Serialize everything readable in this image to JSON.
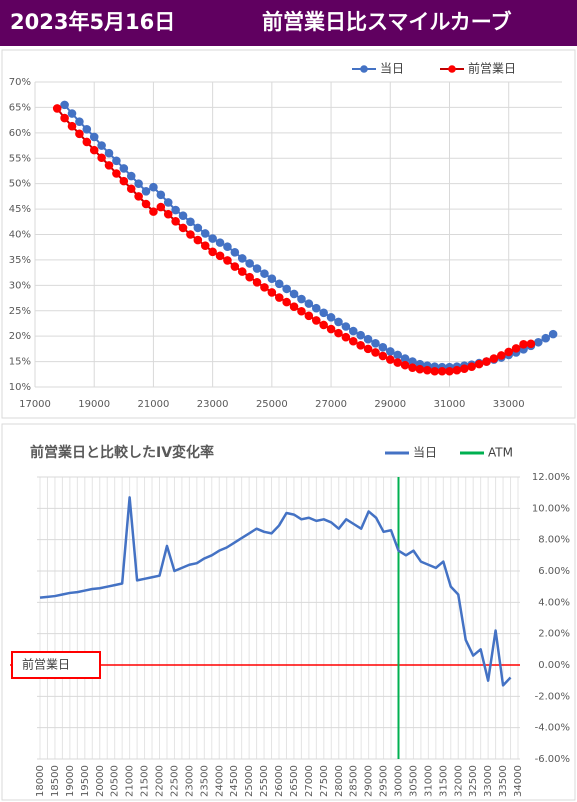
{
  "header": {
    "date": "2023年5月16日",
    "title": "前営業日比スマイルカーブ"
  },
  "chart_data": [
    {
      "type": "line",
      "xlim": [
        17000,
        34800
      ],
      "xticks": [
        17000,
        19000,
        21000,
        23000,
        25000,
        27000,
        29000,
        31000,
        33000
      ],
      "ylim": [
        10,
        70
      ],
      "yticks": [
        {
          "value": 10,
          "label": "10%"
        },
        {
          "value": 15,
          "label": "15%"
        },
        {
          "value": 20,
          "label": "20%"
        },
        {
          "value": 25,
          "label": "25%"
        },
        {
          "value": 30,
          "label": "30%"
        },
        {
          "value": 35,
          "label": "35%"
        },
        {
          "value": 40,
          "label": "40%"
        },
        {
          "value": 45,
          "label": "45%"
        },
        {
          "value": 50,
          "label": "50%"
        },
        {
          "value": 55,
          "label": "55%"
        },
        {
          "value": 60,
          "label": "60%"
        },
        {
          "value": 65,
          "label": "65%"
        },
        {
          "value": 70,
          "label": "70%"
        }
      ],
      "grid": true,
      "legend": "top-right",
      "series": [
        {
          "name": "当日",
          "color": "#4472c4",
          "marker_color": "#4472c4",
          "x": [
            18000,
            18250,
            18500,
            18750,
            19000,
            19250,
            19500,
            19750,
            20000,
            20250,
            20500,
            20750,
            21000,
            21250,
            21500,
            21750,
            22000,
            22250,
            22500,
            22750,
            23000,
            23250,
            23500,
            23750,
            24000,
            24250,
            24500,
            24750,
            25000,
            25250,
            25500,
            25750,
            26000,
            26250,
            26500,
            26750,
            27000,
            27250,
            27500,
            27750,
            28000,
            28250,
            28500,
            28750,
            29000,
            29250,
            29500,
            29750,
            30000,
            30250,
            30500,
            30750,
            31000,
            31250,
            31500,
            31750,
            32000,
            32250,
            32500,
            32750,
            33000,
            33250,
            33500,
            33750,
            34000,
            34250,
            34500
          ],
          "values": [
            65.5,
            63.8,
            62.2,
            60.7,
            59.2,
            57.5,
            56,
            54.5,
            53,
            51.5,
            50,
            48.5,
            49.3,
            47.8,
            46.3,
            44.8,
            43.7,
            42.5,
            41.3,
            40.2,
            39.2,
            38.4,
            37.6,
            36.5,
            35.3,
            34.3,
            33.3,
            32.3,
            31.3,
            30.3,
            29.3,
            28.3,
            27.3,
            26.4,
            25.5,
            24.6,
            23.7,
            22.8,
            21.9,
            21,
            20.2,
            19.4,
            18.6,
            17.8,
            17,
            16.3,
            15.6,
            15,
            14.5,
            14.2,
            14,
            13.9,
            13.9,
            14,
            14.2,
            14.4,
            14.7,
            15,
            15.4,
            15.8,
            16.3,
            16.8,
            17.4,
            18.1,
            18.8,
            19.6,
            20.4
          ]
        },
        {
          "name": "前営業日",
          "color": "#c00000",
          "marker_color": "#ff0000",
          "x": [
            17750,
            18000,
            18250,
            18500,
            18750,
            19000,
            19250,
            19500,
            19750,
            20000,
            20250,
            20500,
            20750,
            21000,
            21250,
            21500,
            21750,
            22000,
            22250,
            22500,
            22750,
            23000,
            23250,
            23500,
            23750,
            24000,
            24250,
            24500,
            24750,
            25000,
            25250,
            25500,
            25750,
            26000,
            26250,
            26500,
            26750,
            27000,
            27250,
            27500,
            27750,
            28000,
            28250,
            28500,
            28750,
            29000,
            29250,
            29500,
            29750,
            30000,
            30250,
            30500,
            30750,
            31000,
            31250,
            31500,
            31750,
            32000,
            32250,
            32500,
            32750,
            33000,
            33250,
            33500,
            33750
          ],
          "values": [
            64.8,
            62.9,
            61.3,
            59.8,
            58.2,
            56.6,
            55.1,
            53.6,
            52,
            50.5,
            49,
            47.5,
            46,
            44.5,
            45.4,
            44,
            42.6,
            41.3,
            40,
            38.9,
            37.8,
            36.6,
            35.8,
            34.9,
            33.7,
            32.7,
            31.6,
            30.6,
            29.6,
            28.6,
            27.6,
            26.7,
            25.8,
            24.9,
            24,
            23.1,
            22.2,
            21.4,
            20.6,
            19.8,
            19,
            18.2,
            17.5,
            16.8,
            16.1,
            15.4,
            14.8,
            14.3,
            13.8,
            13.5,
            13.3,
            13.1,
            13.1,
            13.1,
            13.3,
            13.6,
            14,
            14.5,
            15,
            15.6,
            16.2,
            16.9,
            17.6,
            18.4,
            18.5
          ]
        }
      ]
    },
    {
      "type": "line",
      "title": "前営業日と比較したIV変化率",
      "categories": [
        18000,
        null,
        18500,
        null,
        19000,
        null,
        19500,
        null,
        20000,
        null,
        20500,
        null,
        21000,
        null,
        21500,
        null,
        22000,
        null,
        22500,
        null,
        23000,
        null,
        23500,
        null,
        24000,
        null,
        24500,
        null,
        25000,
        null,
        25500,
        null,
        26000,
        null,
        26500,
        null,
        27000,
        null,
        27500,
        null,
        28000,
        null,
        28500,
        null,
        29000,
        null,
        29500,
        null,
        30000,
        null,
        30500,
        null,
        31000,
        null,
        31500,
        null,
        32000,
        null,
        32500,
        null,
        33000,
        null,
        33500,
        null,
        34000
      ],
      "ylim": [
        -6,
        12
      ],
      "yticks": [
        {
          "value": -6,
          "label": "-6.00%"
        },
        {
          "value": -4,
          "label": "-4.00%"
        },
        {
          "value": -2,
          "label": "-2.00%"
        },
        {
          "value": 0,
          "label": "0.00%"
        },
        {
          "value": 2,
          "label": "2.00%"
        },
        {
          "value": 4,
          "label": "4.00%"
        },
        {
          "value": 6,
          "label": "6.00%"
        },
        {
          "value": 8,
          "label": "8.00%"
        },
        {
          "value": 10,
          "label": "10.00%"
        },
        {
          "value": 12,
          "label": "12.00%"
        }
      ],
      "grid": true,
      "legend": "top-right",
      "series": [
        {
          "name": "当日",
          "color": "#4472c4",
          "values": [
            4.3,
            4.35,
            4.4,
            4.5,
            4.6,
            4.65,
            4.75,
            4.85,
            4.9,
            5.0,
            5.1,
            5.2,
            10.7,
            5.4,
            5.5,
            5.6,
            5.7,
            7.6,
            6.0,
            6.2,
            6.4,
            6.5,
            6.8,
            7.0,
            7.3,
            7.5,
            7.8,
            8.1,
            8.4,
            8.7,
            8.5,
            8.4,
            8.9,
            9.7,
            9.6,
            9.3,
            9.4,
            9.2,
            9.3,
            9.1,
            8.7,
            9.3,
            9.0,
            8.7,
            9.8,
            9.4,
            8.5,
            8.6,
            7.3,
            7.0,
            7.3,
            6.6,
            6.4,
            6.2,
            6.6,
            5.0,
            4.5,
            1.6,
            0.6,
            1.0,
            -1.0,
            2.2,
            -1.3,
            -0.8,
            null
          ]
        }
      ],
      "atm": {
        "name": "ATM",
        "color": "#00b050",
        "x": 30000
      },
      "baseline": {
        "label": "前営業日",
        "value": 0,
        "color": "#ff0000"
      }
    }
  ]
}
